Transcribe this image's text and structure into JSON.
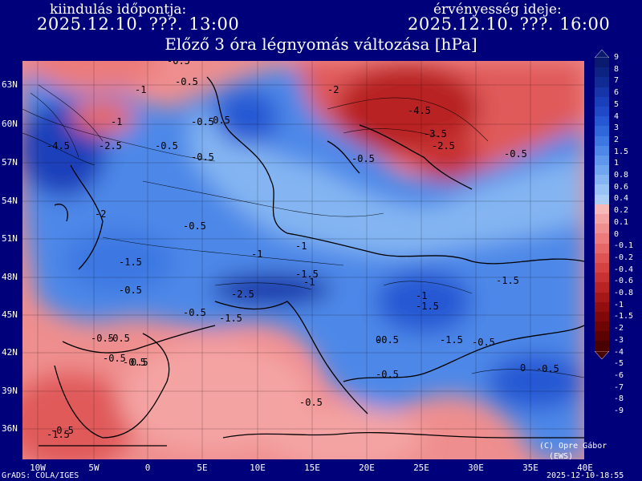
{
  "header": {
    "left_label": "kiindulás időpontja:",
    "left_date": "2025.12.10. ???. 13:00",
    "right_label": "érvényesség ideje:",
    "right_date": "2025.12.10. ???. 16:00",
    "title": "Előző 3 óra légnyomás változása [hPa]"
  },
  "lat_labels": [
    "63N",
    "60N",
    "57N",
    "54N",
    "51N",
    "48N",
    "45N",
    "42N",
    "39N",
    "36N"
  ],
  "lon_labels": [
    "10W",
    "5W",
    "0",
    "5E",
    "10E",
    "15E",
    "20E",
    "25E",
    "30E",
    "35E",
    "40E"
  ],
  "scale": {
    "labels": [
      "9",
      "8",
      "7",
      "6",
      "5",
      "4",
      "3",
      "2",
      "1.5",
      "1",
      "0.8",
      "0.6",
      "0.4",
      "0.2",
      "0.1",
      "0",
      "-0.1",
      "-0.2",
      "-0.4",
      "-0.6",
      "-0.8",
      "-1",
      "-1.5",
      "-2",
      "-3",
      "-4",
      "-5",
      "-6",
      "-7",
      "-8",
      "-9"
    ],
    "colors": [
      "#0a1a6e",
      "#0d2382",
      "#112b95",
      "#1535a8",
      "#1a3fba",
      "#2049c8",
      "#2658d3",
      "#3068db",
      "#3d78e2",
      "#4d88e8",
      "#5e97ec",
      "#70a6ef",
      "#84b5f2",
      "#98c3f4",
      "#adcff6",
      "#f7b8b8",
      "#f4a3a3",
      "#f08f8f",
      "#ec7b7b",
      "#e66767",
      "#de5454",
      "#d44242",
      "#c83232",
      "#b82424",
      "#a61818",
      "#930f0f",
      "#800808",
      "#6e0404",
      "#5c0202",
      "#4a0101"
    ]
  },
  "contour_labels": [
    "-0.5",
    "-0.5",
    "-1",
    "-0.5",
    "-2",
    "-4.5",
    "-3.5",
    "-2.5",
    "-1",
    "-4.5",
    "-2.5",
    "-0.5",
    "-0.5",
    "-0.5",
    "-0.5",
    "-2",
    "-0.5",
    "-1",
    "-1.5",
    "-1.5",
    "-2.5",
    "-1.5",
    "-0.5",
    "-0.5",
    "-1.5",
    "-1",
    "-1.5",
    "-1.5",
    "-0.5",
    "-0.5",
    "-0.5",
    "-0.5",
    "-0.5",
    "-0.5",
    "-0.5",
    "-0.5",
    "0.5",
    "-0.5",
    "0",
    "-1.5",
    "-0.5",
    "-1",
    "-1",
    "-0.5",
    "0"
  ],
  "footer": {
    "left": "GrADS: COLA/IGES",
    "right": "2025-12-10-18:55",
    "credit1": "(C) Opre Gábor",
    "credit2": "(EWS)"
  },
  "colors": {
    "background": "#00007a",
    "ocean_red": "#f28a8a",
    "blue_main": "#4d88e8",
    "blue_dark": "#2658d3",
    "red_dark": "#c83232"
  }
}
